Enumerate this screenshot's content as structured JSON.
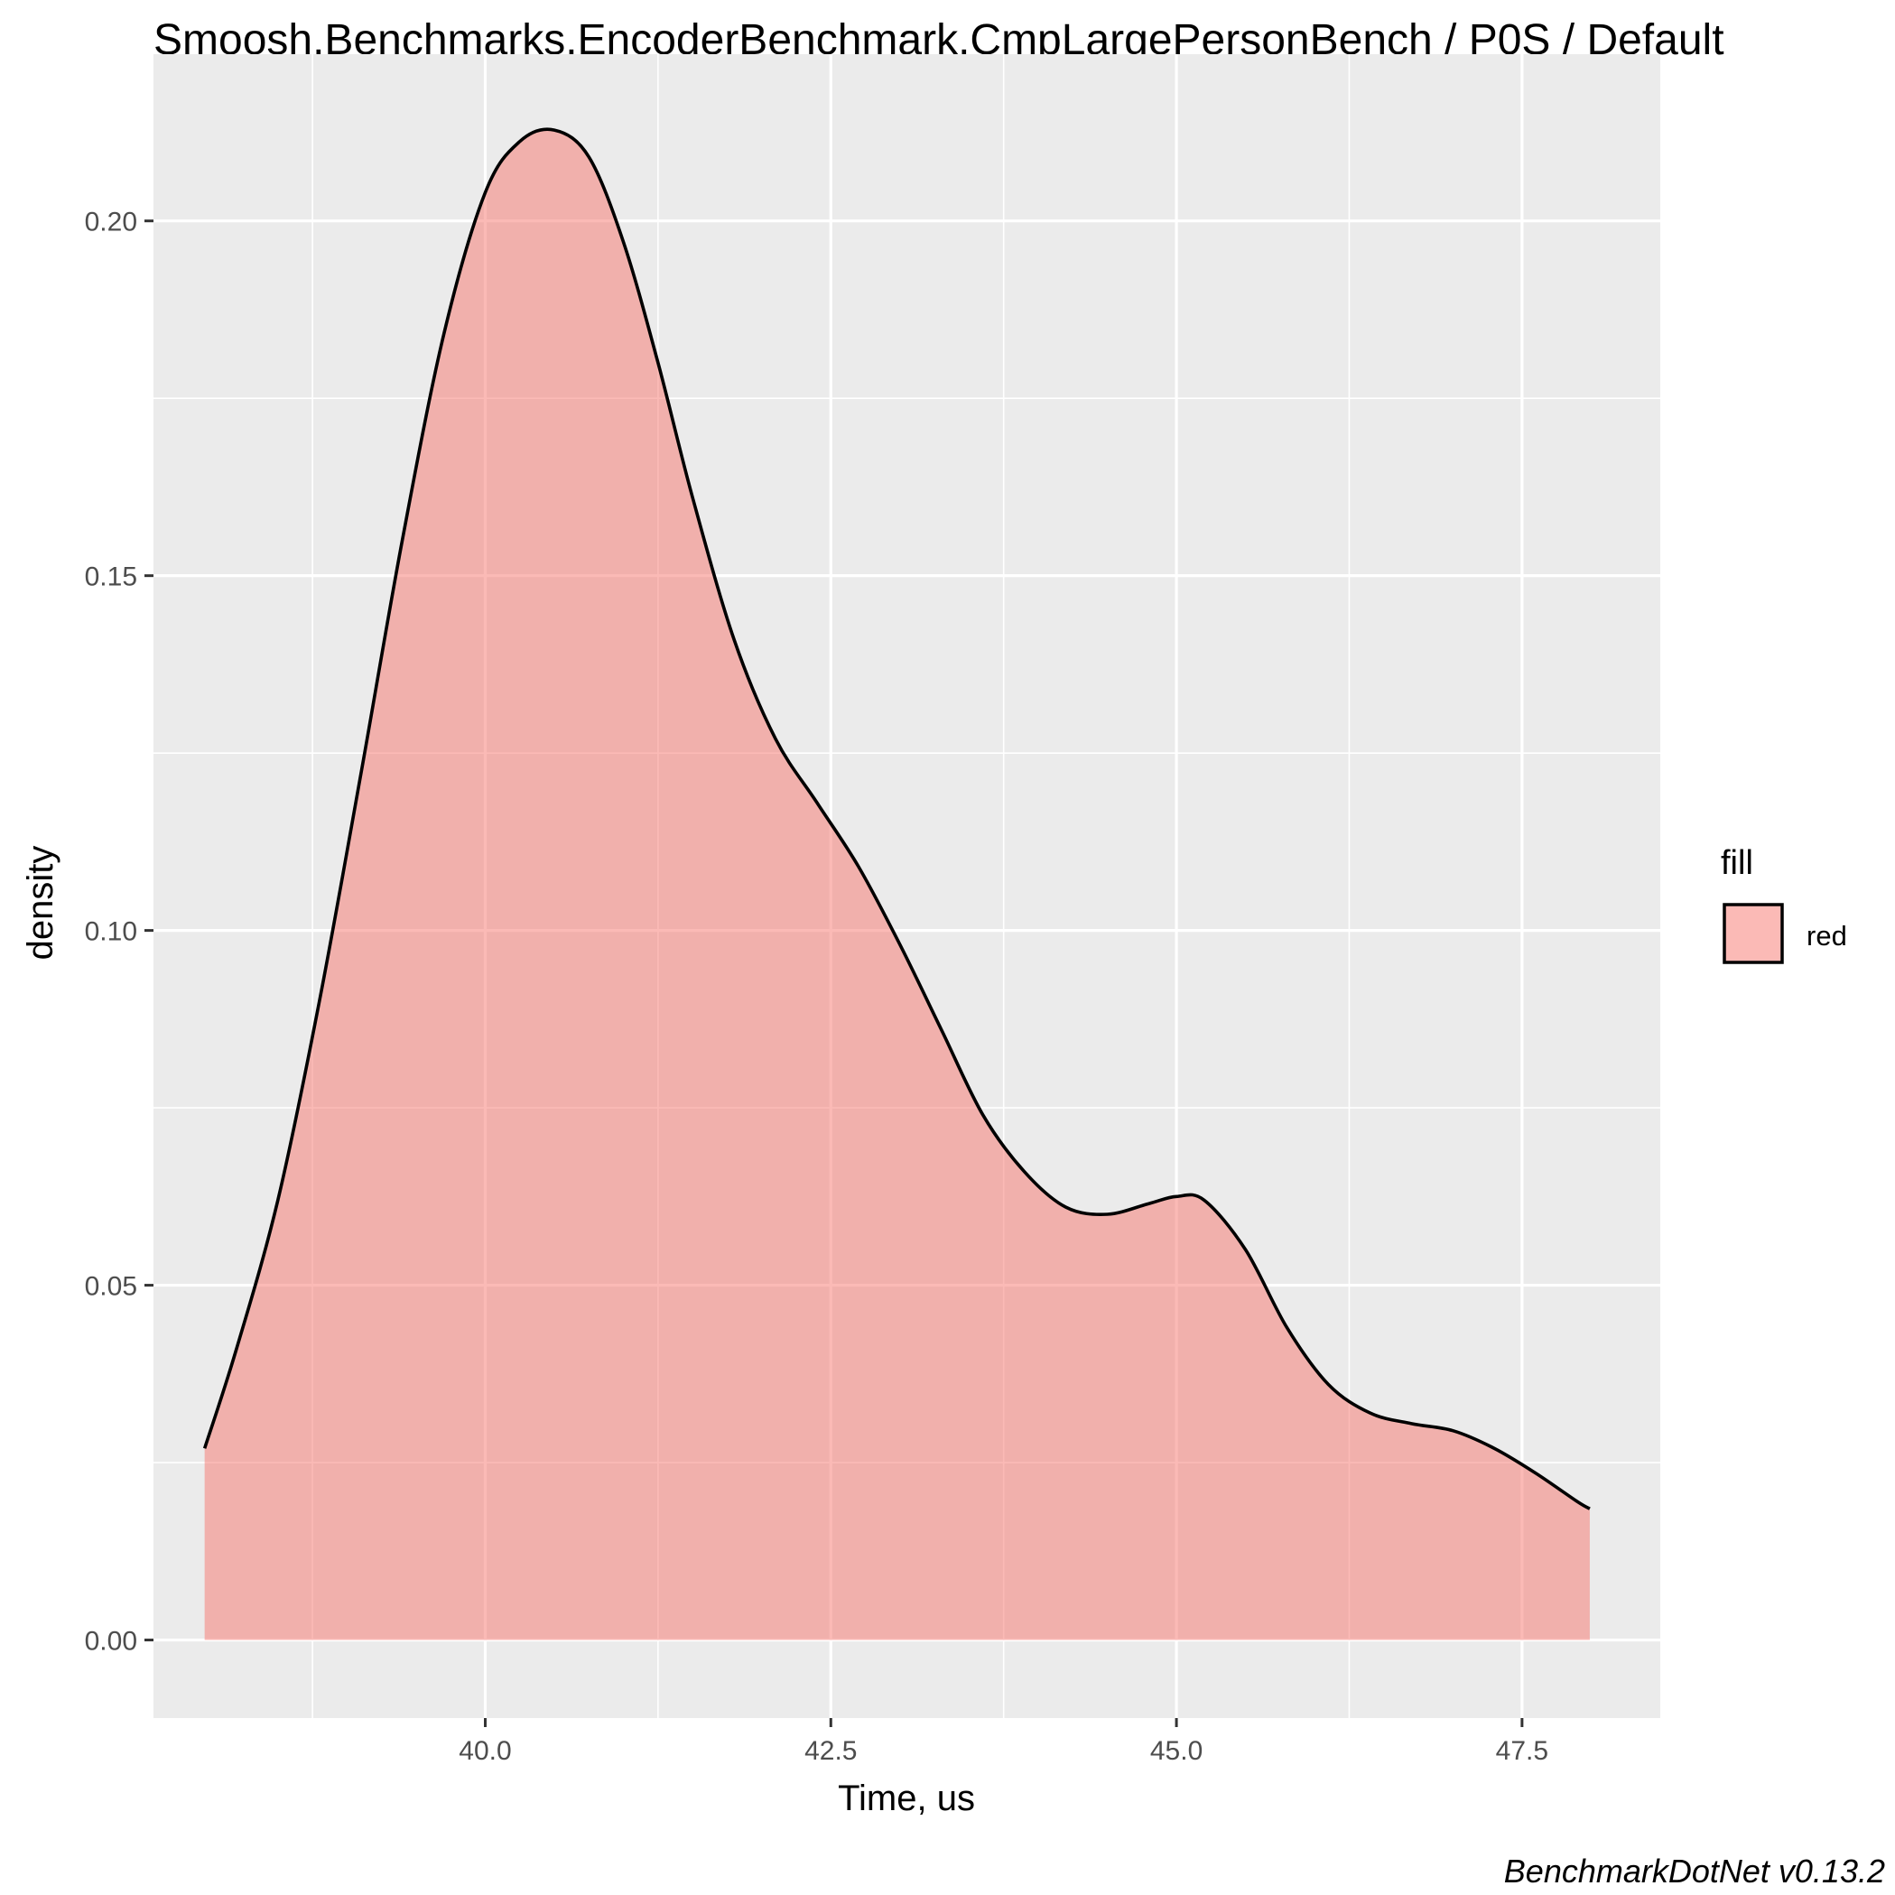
{
  "chart_data": {
    "type": "area",
    "title": "Smoosh.Benchmarks.EncoderBenchmark.CmpLargePersonBench / P0S / Default",
    "xlabel": "Time, us",
    "ylabel": "density",
    "xlim": [
      37.6,
      48.5
    ],
    "ylim": [
      -0.011,
      0.2235
    ],
    "x_ticks": [
      40.0,
      42.5,
      45.0,
      47.5
    ],
    "x_tick_labels": [
      "40.0",
      "42.5",
      "45.0",
      "47.5"
    ],
    "y_ticks": [
      0.0,
      0.05,
      0.1,
      0.15,
      0.2
    ],
    "y_tick_labels": [
      "0.00",
      "0.05",
      "0.10",
      "0.15",
      "0.20"
    ],
    "grid": true,
    "legend": {
      "title": "fill",
      "placement": "right",
      "entries": [
        {
          "label": "red",
          "color": "#F8766D"
        }
      ]
    },
    "caption": "BenchmarkDotNet v0.13.2",
    "colors": {
      "panel": "#EBEBEB",
      "grid": "#FFFFFF",
      "fill": "#F8766D",
      "line": "#000000"
    },
    "series": [
      {
        "x": [
          37.97,
          38.2,
          38.5,
          38.8,
          39.1,
          39.4,
          39.7,
          40.0,
          40.25,
          40.5,
          40.75,
          41.0,
          41.25,
          41.5,
          41.8,
          42.1,
          42.4,
          42.7,
          43.0,
          43.3,
          43.6,
          43.9,
          44.2,
          44.5,
          44.8,
          45.0,
          45.2,
          45.5,
          45.8,
          46.1,
          46.4,
          46.7,
          47.0,
          47.3,
          47.6,
          47.9,
          47.99
        ],
        "y": [
          0.027,
          0.041,
          0.062,
          0.09,
          0.122,
          0.155,
          0.184,
          0.204,
          0.2112,
          0.2128,
          0.209,
          0.197,
          0.18,
          0.161,
          0.141,
          0.127,
          0.118,
          0.109,
          0.098,
          0.086,
          0.074,
          0.066,
          0.061,
          0.06,
          0.0615,
          0.0625,
          0.062,
          0.055,
          0.044,
          0.036,
          0.032,
          0.0305,
          0.0295,
          0.027,
          0.0235,
          0.0195,
          0.0185
        ]
      }
    ]
  }
}
